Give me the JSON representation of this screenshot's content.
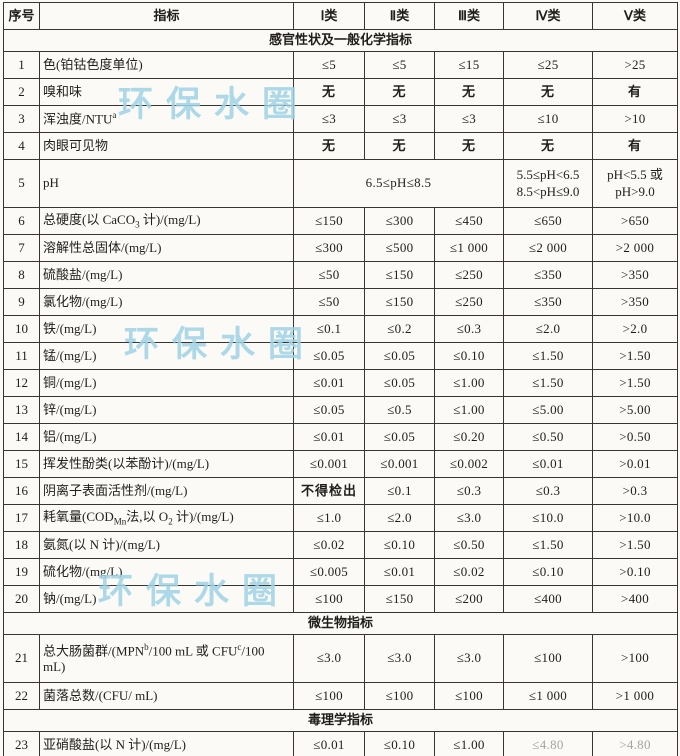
{
  "watermark": {
    "text": "环保水圈",
    "color": "#9fd3e6"
  },
  "table": {
    "columns": [
      "序号",
      "指标",
      "Ⅰ类",
      "Ⅱ类",
      "Ⅲ类",
      "Ⅳ类",
      "Ⅴ类"
    ],
    "rows": [
      {
        "type": "section",
        "label": "感官性状及一般化学指标"
      },
      {
        "type": "item",
        "no": "1",
        "indicator": "色(铂钴色度单位)",
        "values": [
          "≤5",
          "≤5",
          "≤15",
          "≤25",
          ">25"
        ]
      },
      {
        "type": "item",
        "no": "2",
        "indicator": "嗅和味",
        "values": [
          "无",
          "无",
          "无",
          "无",
          "有"
        ]
      },
      {
        "type": "item",
        "no": "3",
        "indicator": "浑浊度/NTU<sup>a</sup>",
        "values": [
          "≤3",
          "≤3",
          "≤3",
          "≤10",
          ">10"
        ]
      },
      {
        "type": "item",
        "no": "4",
        "indicator": "肉眼可见物",
        "values": [
          "无",
          "无",
          "无",
          "无",
          "有"
        ]
      },
      {
        "type": "ph",
        "no": "5",
        "indicator": "pH",
        "span_value": "6.5≤pH≤8.5",
        "col4_lines": [
          "5.5≤pH<6.5",
          "8.5<pH≤9.0"
        ],
        "col5_lines": [
          "pH<5.5 或",
          "pH>9.0"
        ]
      },
      {
        "type": "item",
        "no": "6",
        "indicator": "总硬度(以 CaCO<sub>3</sub> 计)/(mg/L)",
        "values": [
          "≤150",
          "≤300",
          "≤450",
          "≤650",
          ">650"
        ]
      },
      {
        "type": "item",
        "no": "7",
        "indicator": "溶解性总固体/(mg/L)",
        "values": [
          "≤300",
          "≤500",
          "≤1 000",
          "≤2 000",
          ">2 000"
        ]
      },
      {
        "type": "item",
        "no": "8",
        "indicator": "硫酸盐/(mg/L)",
        "values": [
          "≤50",
          "≤150",
          "≤250",
          "≤350",
          ">350"
        ]
      },
      {
        "type": "item",
        "no": "9",
        "indicator": "氯化物/(mg/L)",
        "values": [
          "≤50",
          "≤150",
          "≤250",
          "≤350",
          ">350"
        ]
      },
      {
        "type": "item",
        "no": "10",
        "indicator": "铁/(mg/L)",
        "values": [
          "≤0.1",
          "≤0.2",
          "≤0.3",
          "≤2.0",
          ">2.0"
        ]
      },
      {
        "type": "item",
        "no": "11",
        "indicator": "锰/(mg/L)",
        "values": [
          "≤0.05",
          "≤0.05",
          "≤0.10",
          "≤1.50",
          ">1.50"
        ]
      },
      {
        "type": "item",
        "no": "12",
        "indicator": "铜/(mg/L)",
        "values": [
          "≤0.01",
          "≤0.05",
          "≤1.00",
          "≤1.50",
          ">1.50"
        ]
      },
      {
        "type": "item",
        "no": "13",
        "indicator": "锌/(mg/L)",
        "values": [
          "≤0.05",
          "≤0.5",
          "≤1.00",
          "≤5.00",
          ">5.00"
        ]
      },
      {
        "type": "item",
        "no": "14",
        "indicator": "铝/(mg/L)",
        "values": [
          "≤0.01",
          "≤0.05",
          "≤0.20",
          "≤0.50",
          ">0.50"
        ]
      },
      {
        "type": "item",
        "no": "15",
        "indicator": "挥发性酚类(以苯酚计)/(mg/L)",
        "values": [
          "≤0.001",
          "≤0.001",
          "≤0.002",
          "≤0.01",
          ">0.01"
        ]
      },
      {
        "type": "item",
        "no": "16",
        "indicator": "阴离子表面活性剂/(mg/L)",
        "values": [
          "不得检出",
          "≤0.1",
          "≤0.3",
          "≤0.3",
          ">0.3"
        ]
      },
      {
        "type": "item",
        "no": "17",
        "indicator": "耗氧量(COD<sub>Mn</sub>法,以 O<sub>2</sub> 计)/(mg/L)",
        "values": [
          "≤1.0",
          "≤2.0",
          "≤3.0",
          "≤10.0",
          ">10.0"
        ]
      },
      {
        "type": "item",
        "no": "18",
        "indicator": "氨氮(以 N 计)/(mg/L)",
        "values": [
          "≤0.02",
          "≤0.10",
          "≤0.50",
          "≤1.50",
          ">1.50"
        ]
      },
      {
        "type": "item",
        "no": "19",
        "indicator": "硫化物/(mg/L)",
        "values": [
          "≤0.005",
          "≤0.01",
          "≤0.02",
          "≤0.10",
          ">0.10"
        ]
      },
      {
        "type": "item",
        "no": "20",
        "indicator": "钠/(mg/L)",
        "values": [
          "≤100",
          "≤150",
          "≤200",
          "≤400",
          ">400"
        ]
      },
      {
        "type": "section",
        "label": "微生物指标"
      },
      {
        "type": "item",
        "tall": true,
        "no": "21",
        "indicator": "总大肠菌群/(MPN<sup>b</sup>/100 mL 或 CFU<sup>c</sup>/100 mL)",
        "values": [
          "≤3.0",
          "≤3.0",
          "≤3.0",
          "≤100",
          ">100"
        ]
      },
      {
        "type": "item",
        "no": "22",
        "indicator": "菌落总数/(CFU/ mL)",
        "values": [
          "≤100",
          "≤100",
          "≤100",
          "≤1 000",
          ">1 000"
        ]
      },
      {
        "type": "section",
        "label": "毒理学指标"
      },
      {
        "type": "item",
        "no": "23",
        "indicator": "亚硝酸盐(以 N 计)/(mg/L)",
        "values": [
          "≤0.01",
          "≤0.10",
          "≤1.00",
          "≤4.80",
          ">4.80"
        ],
        "faded_cols": [
          3,
          4
        ]
      }
    ]
  }
}
